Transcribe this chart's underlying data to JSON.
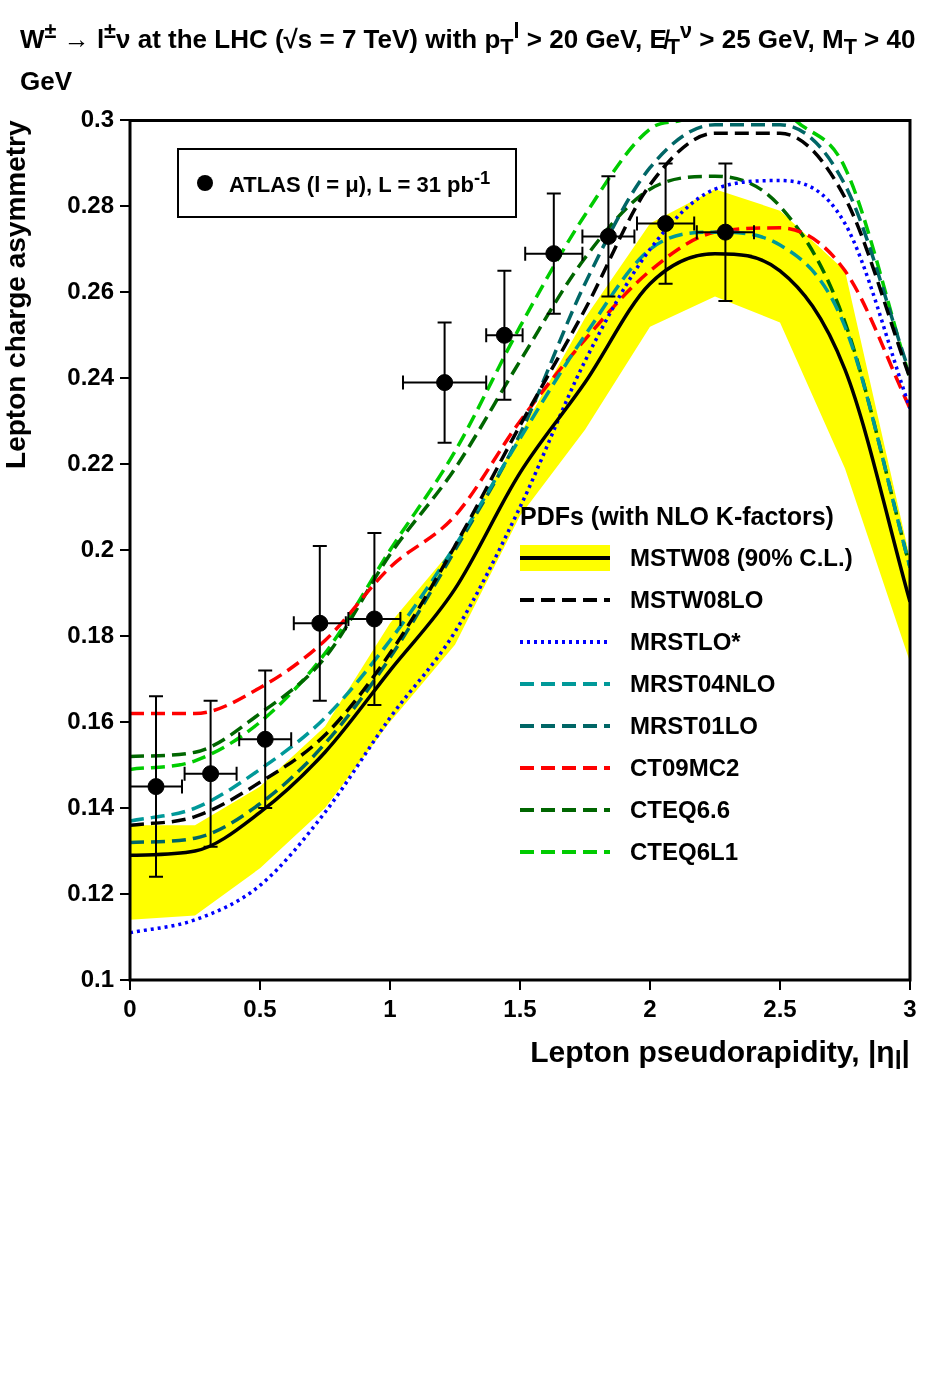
{
  "chart_data": {
    "type": "line",
    "title": "W$^{±}$ → l$^{±}$ν at the LHC (√s = 7 TeV) with p$_{T}$$^{l}$ > 20 GeV, E̸$_{T}$$^{ν}$ > 25 GeV, M$_{T}$ > 40 GeV",
    "xlabel": "Lepton pseudorapidity, |η$_{l}$|",
    "ylabel": "Lepton charge asymmetry",
    "legend_title": "PDFs (with NLO K-factors)",
    "legend": "top right",
    "xlim": [
      0,
      3
    ],
    "ylim": [
      0.1,
      0.3
    ],
    "xticks": [
      0,
      0.5,
      1,
      1.5,
      2,
      2.5,
      3
    ],
    "yticks": [
      0.1,
      0.12,
      0.14,
      0.16,
      0.18,
      0.2,
      0.22,
      0.24,
      0.26,
      0.28,
      0.3
    ],
    "x": [
      0,
      0.25,
      0.5,
      0.75,
      1,
      1.25,
      1.5,
      1.75,
      2,
      2.25,
      2.5,
      2.75,
      3
    ],
    "series": [
      {
        "name": "ATLAS (l = μ), L = 31 pb$^{-1}$",
        "type": "scatter",
        "marker": "circle",
        "color": "#000000",
        "x": [
          0.1,
          0.31,
          0.52,
          0.73,
          0.94,
          1.21,
          1.44,
          1.63,
          1.84,
          2.06,
          2.29
        ],
        "values": [
          0.145,
          0.148,
          0.156,
          0.183,
          0.184,
          0.239,
          0.25,
          0.269,
          0.273,
          0.276,
          0.274
        ],
        "errors": [
          0.021,
          0.017,
          0.016,
          0.018,
          0.02,
          0.014,
          0.015,
          0.014,
          0.014,
          0.014,
          0.016
        ],
        "xerrors": [
          0.1,
          0.1,
          0.1,
          0.1,
          0.1,
          0.16,
          0.07,
          0.11,
          0.1,
          0.11,
          0.11
        ]
      },
      {
        "name": "MSTW08 (90% C.L.)",
        "color": "#000000",
        "line_style": "solid",
        "values": [
          0.129,
          0.13,
          0.139,
          0.153,
          0.172,
          0.191,
          0.218,
          0.239,
          0.262,
          0.269,
          0.265,
          0.242,
          0.188
        ],
        "lower": [
          0.114,
          0.115,
          0.126,
          0.14,
          0.16,
          0.178,
          0.208,
          0.228,
          0.252,
          0.259,
          0.253,
          0.219,
          0.174
        ],
        "upper": [
          0.136,
          0.136,
          0.145,
          0.159,
          0.183,
          0.201,
          0.227,
          0.254,
          0.276,
          0.284,
          0.279,
          0.265,
          0.198
        ]
      },
      {
        "name": "MSTW08LO",
        "color": "#000000",
        "line_style": "dashed",
        "values": [
          0.136,
          0.138,
          0.146,
          0.157,
          0.176,
          0.201,
          0.229,
          0.256,
          0.285,
          0.297,
          0.297,
          0.282,
          0.24
        ]
      },
      {
        "name": "MRSTLO*",
        "color": "#0000ff",
        "line_style": "dotted",
        "values": [
          0.111,
          0.114,
          0.122,
          0.139,
          0.161,
          0.181,
          0.21,
          0.244,
          0.27,
          0.284,
          0.286,
          0.276,
          0.233
        ]
      },
      {
        "name": "MRST04NLO",
        "color": "#009999",
        "line_style": "dashed",
        "values": [
          0.137,
          0.14,
          0.149,
          0.161,
          0.179,
          0.201,
          0.226,
          0.25,
          0.27,
          0.274,
          0.271,
          0.252,
          0.196
        ]
      },
      {
        "name": "MRST01LO",
        "color": "#006666",
        "line_style": "dashed",
        "values": [
          0.132,
          0.133,
          0.141,
          0.155,
          0.175,
          0.2,
          0.227,
          0.262,
          0.289,
          0.299,
          0.299,
          0.285,
          0.241
        ]
      },
      {
        "name": "CT09MC2",
        "color": "#ff0000",
        "line_style": "dashed",
        "values": [
          0.162,
          0.162,
          0.168,
          0.179,
          0.196,
          0.208,
          0.23,
          0.249,
          0.265,
          0.274,
          0.275,
          0.265,
          0.233
        ]
      },
      {
        "name": "CTEQ6.6",
        "color": "#006600",
        "line_style": "dashed",
        "values": [
          0.152,
          0.153,
          0.162,
          0.175,
          0.199,
          0.219,
          0.244,
          0.268,
          0.284,
          0.287,
          0.28,
          0.253,
          0.196
        ]
      },
      {
        "name": "CTEQ6L1",
        "color": "#00cc00",
        "line_style": "dashed",
        "x": [
          0,
          0.25,
          0.5,
          0.75,
          1,
          1.25,
          1.5,
          1.75,
          2,
          2.12,
          2.3,
          2.56,
          2.75,
          3
        ],
        "values": [
          0.149,
          0.151,
          0.16,
          0.176,
          0.2,
          0.223,
          0.252,
          0.278,
          0.298,
          0.3,
          null,
          0.3,
          0.289,
          0.24
        ]
      }
    ]
  }
}
